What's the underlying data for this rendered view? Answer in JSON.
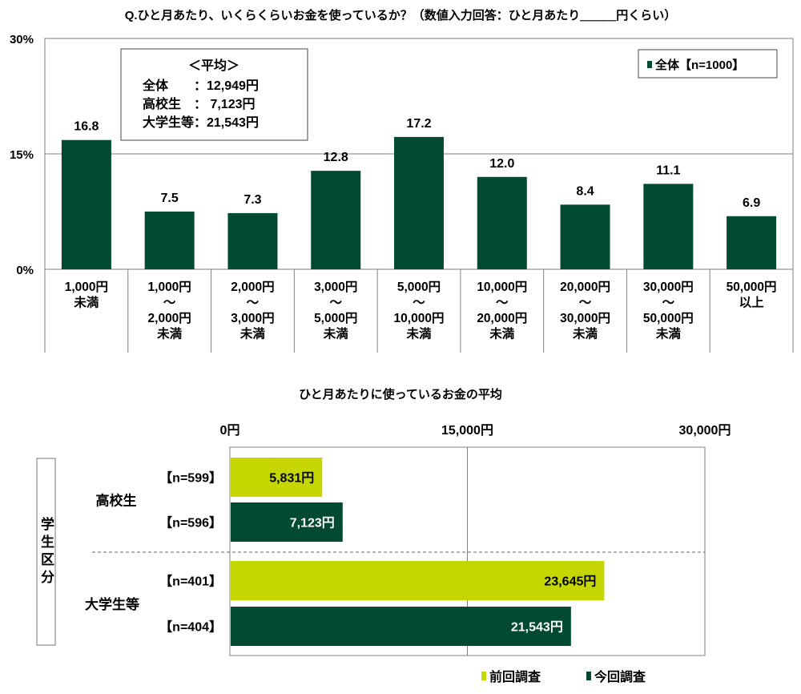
{
  "colors": {
    "current": "#004A32",
    "previous": "#C5D600",
    "grid": "#808080"
  },
  "chart_data": [
    {
      "type": "bar",
      "title": "Q.ひと月あたり、いくらくらいお金を使っているか？（数値入力回答：ひと月あたり＿＿＿円くらい）",
      "ylim": [
        0,
        30
      ],
      "yticks": [
        "0%",
        "15%",
        "30%"
      ],
      "ytick_values": [
        0,
        15,
        30
      ],
      "categories": [
        [
          "1,000円",
          "未満"
        ],
        [
          "1,000円",
          "～",
          "2,000円",
          "未満"
        ],
        [
          "2,000円",
          "～",
          "3,000円",
          "未満"
        ],
        [
          "3,000円",
          "～",
          "5,000円",
          "未満"
        ],
        [
          "5,000円",
          "～",
          "10,000円",
          "未満"
        ],
        [
          "10,000円",
          "～",
          "20,000円",
          "未満"
        ],
        [
          "20,000円",
          "～",
          "30,000円",
          "未満"
        ],
        [
          "30,000円",
          "～",
          "50,000円",
          "未満"
        ],
        [
          "50,000円",
          "以上"
        ]
      ],
      "values": [
        16.8,
        7.5,
        7.3,
        12.8,
        17.2,
        12.0,
        8.4,
        11.1,
        6.9
      ],
      "value_labels": [
        "16.8",
        "7.5",
        "7.3",
        "12.8",
        "17.2",
        "12.0",
        "8.4",
        "11.1",
        "6.9"
      ],
      "legend": {
        "label": "全体【n=1000】",
        "placement": "top-right"
      },
      "annotation": {
        "title": "＜平均＞",
        "lines": [
          "全体　　：12,949円",
          "高校生　：  7,123円",
          "大学生等：21,543円"
        ]
      }
    },
    {
      "type": "bar",
      "orientation": "horizontal",
      "title": "ひと月あたりに使っているお金の平均",
      "xlim": [
        0,
        30000
      ],
      "xticks": [
        "0円",
        "15,000円",
        "30,000円"
      ],
      "xtick_values": [
        0,
        15000,
        30000
      ],
      "axis_group_label": "学生区分",
      "groups": [
        {
          "name": "高校生",
          "bars": [
            {
              "series": "前回調査",
              "n": "【n=599】",
              "value": 5831,
              "label": "5,831円"
            },
            {
              "series": "今回調査",
              "n": "【n=596】",
              "value": 7123,
              "label": "7,123円"
            }
          ]
        },
        {
          "name": "大学生等",
          "bars": [
            {
              "series": "前回調査",
              "n": "【n=401】",
              "value": 23645,
              "label": "23,645円"
            },
            {
              "series": "今回調査",
              "n": "【n=404】",
              "value": 21543,
              "label": "21,543円"
            }
          ]
        }
      ],
      "legend": {
        "items": [
          "前回調査",
          "今回調査"
        ],
        "placement": "bottom-right"
      }
    }
  ]
}
